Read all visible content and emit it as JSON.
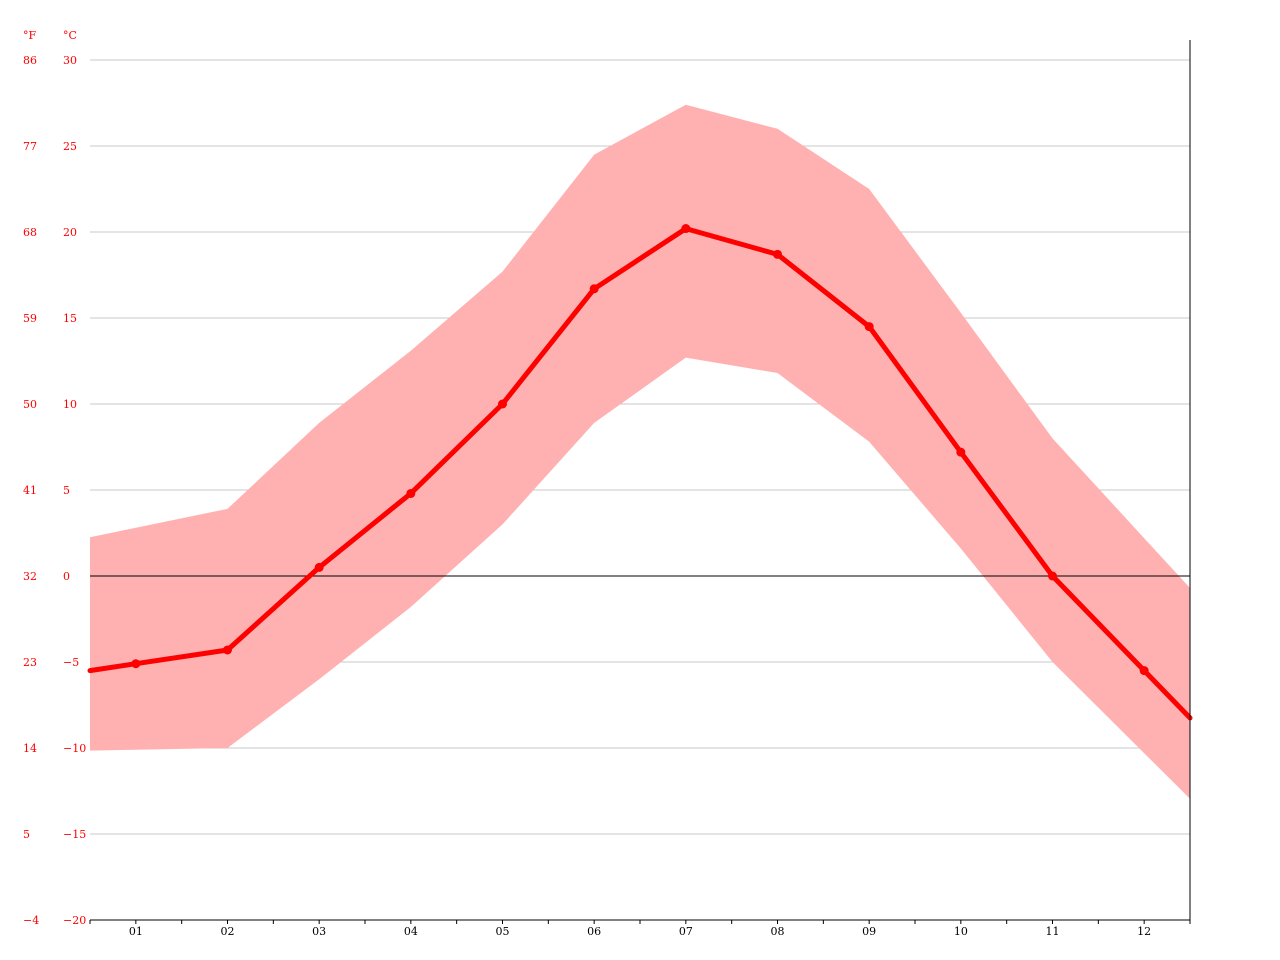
{
  "chart_data": {
    "type": "area",
    "units": {
      "fahrenheit": "°F",
      "celsius": "°C"
    },
    "x_categories": [
      "01",
      "02",
      "03",
      "04",
      "05",
      "06",
      "07",
      "08",
      "09",
      "10",
      "11",
      "12"
    ],
    "ylim_celsius": [
      -20,
      30
    ],
    "y_ticks_celsius": [
      "30",
      "25",
      "20",
      "15",
      "10",
      "5",
      "0",
      "−5",
      "−10",
      "−15",
      "−20"
    ],
    "y_ticks_fahrenheit": [
      "86",
      "77",
      "68",
      "59",
      "50",
      "41",
      "32",
      "23",
      "14",
      "5",
      "−4"
    ],
    "grid": true,
    "series": [
      {
        "values": [
          -5.1,
          -4.3,
          0.5,
          4.8,
          10.0,
          16.7,
          20.2,
          18.7,
          14.5,
          7.2,
          0.0,
          -5.5
        ]
      }
    ],
    "band": {
      "upper": [
        2.8,
        3.9,
        8.9,
        13.1,
        17.7,
        24.5,
        27.4,
        26.0,
        22.5,
        15.3,
        8.0,
        2.2
      ],
      "lower": [
        -10.1,
        -10.0,
        -6.0,
        -1.8,
        3.0,
        8.9,
        12.7,
        11.8,
        7.8,
        1.6,
        -5.0,
        -10.3
      ]
    },
    "colors": {
      "line": "#ff0000",
      "band": "#ffb1b1",
      "tick_text": "#ff0000",
      "x_text": "#000000"
    }
  }
}
